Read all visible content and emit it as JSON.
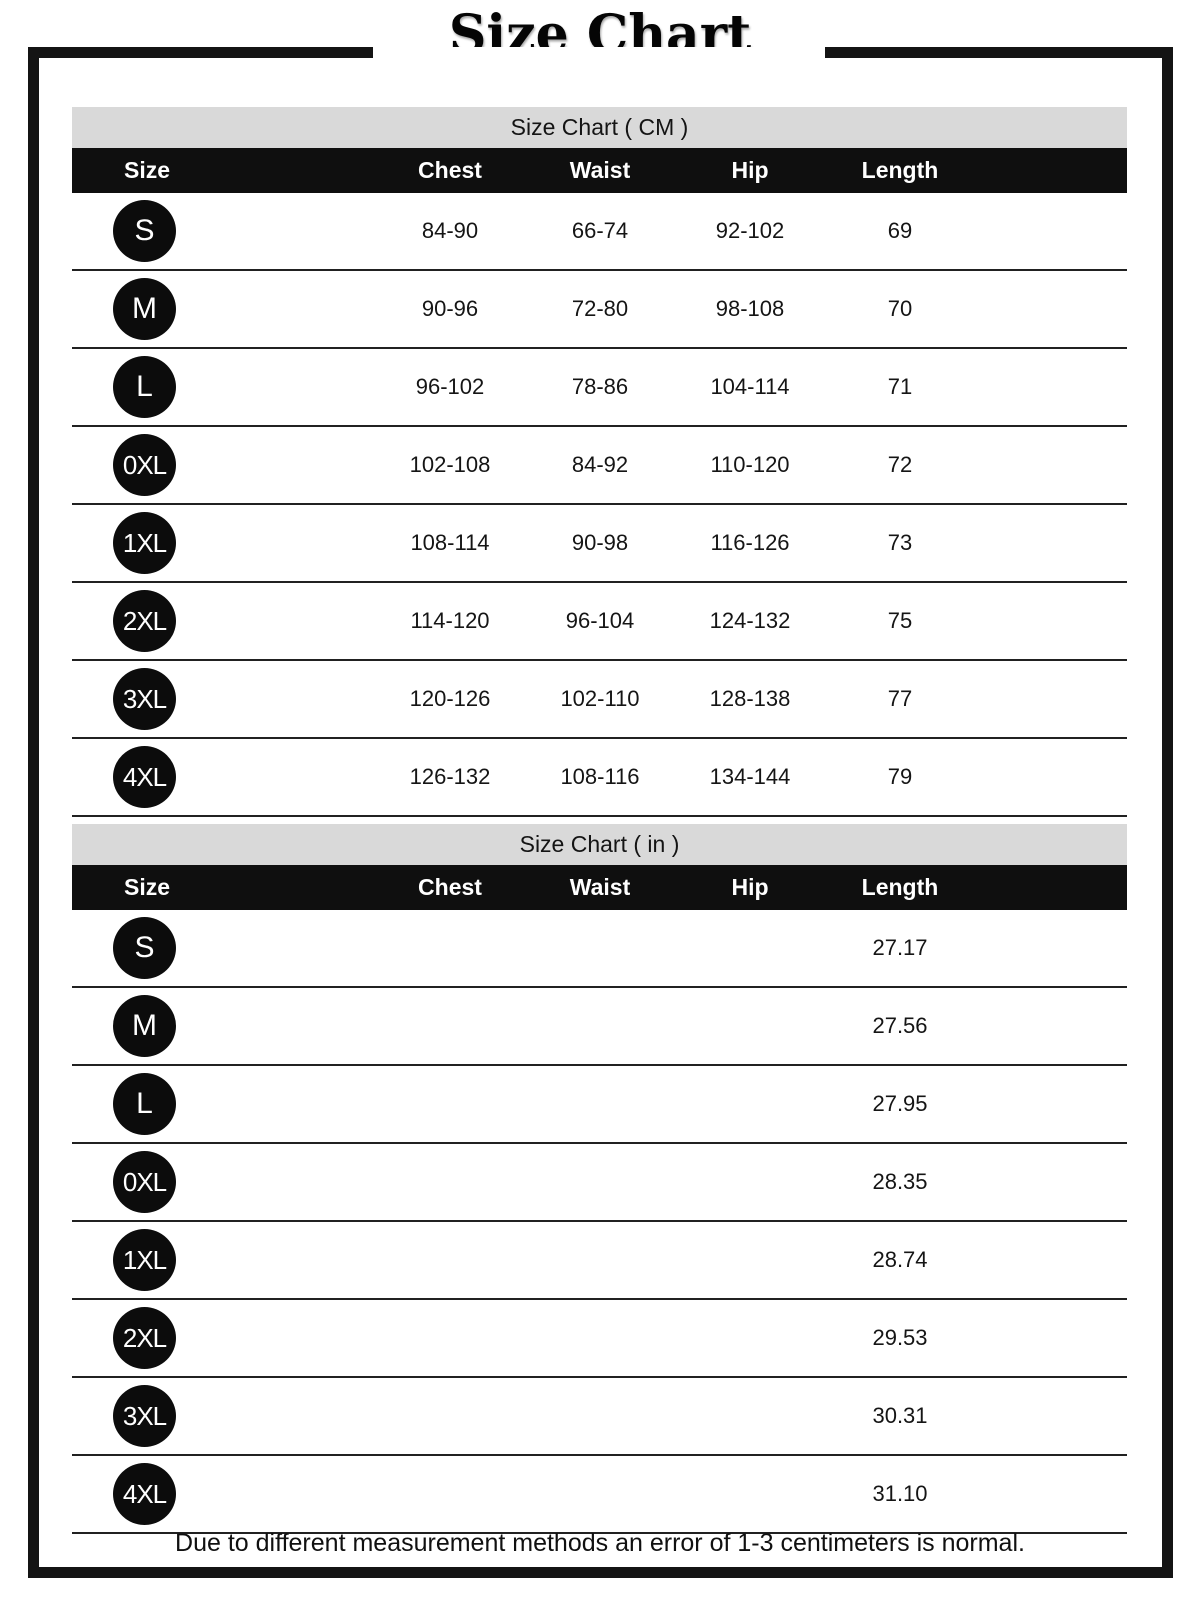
{
  "page": {
    "title": "Size Chart",
    "note": "Due to different measurement methods an error of 1-3 centimeters is normal."
  },
  "colors": {
    "frame_black": "#141414",
    "band_gray": "#d9d9d9",
    "header_black": "#0f0f0f",
    "badge_black": "#0c0c0c",
    "divider": "#212121"
  },
  "tables": [
    {
      "caption": "Size Chart ( CM )",
      "columns": [
        "Size",
        "Chest",
        "Waist",
        "Hip",
        "Length"
      ],
      "rows": [
        {
          "size": "S",
          "chest": "84-90",
          "waist": "66-74",
          "hip": "92-102",
          "length": "69"
        },
        {
          "size": "M",
          "chest": "90-96",
          "waist": "72-80",
          "hip": "98-108",
          "length": "70"
        },
        {
          "size": "L",
          "chest": "96-102",
          "waist": "78-86",
          "hip": "104-114",
          "length": "71"
        },
        {
          "size": "0XL",
          "chest": "102-108",
          "waist": "84-92",
          "hip": "110-120",
          "length": "72"
        },
        {
          "size": "1XL",
          "chest": "108-114",
          "waist": "90-98",
          "hip": "116-126",
          "length": "73"
        },
        {
          "size": "2XL",
          "chest": "114-120",
          "waist": "96-104",
          "hip": "124-132",
          "length": "75"
        },
        {
          "size": "3XL",
          "chest": "120-126",
          "waist": "102-110",
          "hip": "128-138",
          "length": "77"
        },
        {
          "size": "4XL",
          "chest": "126-132",
          "waist": "108-116",
          "hip": "134-144",
          "length": "79"
        }
      ]
    },
    {
      "caption": "Size Chart ( in )",
      "columns": [
        "Size",
        "Chest",
        "Waist",
        "Hip",
        "Length"
      ],
      "rows": [
        {
          "size": "S",
          "chest": "",
          "waist": "",
          "hip": "",
          "length": "27.17"
        },
        {
          "size": "M",
          "chest": "",
          "waist": "",
          "hip": "",
          "length": "27.56"
        },
        {
          "size": "L",
          "chest": "",
          "waist": "",
          "hip": "",
          "length": "27.95"
        },
        {
          "size": "0XL",
          "chest": "",
          "waist": "",
          "hip": "",
          "length": "28.35"
        },
        {
          "size": "1XL",
          "chest": "",
          "waist": "",
          "hip": "",
          "length": "28.74"
        },
        {
          "size": "2XL",
          "chest": "",
          "waist": "",
          "hip": "",
          "length": "29.53"
        },
        {
          "size": "3XL",
          "chest": "",
          "waist": "",
          "hip": "",
          "length": "30.31"
        },
        {
          "size": "4XL",
          "chest": "",
          "waist": "",
          "hip": "",
          "length": "31.10"
        }
      ]
    }
  ]
}
